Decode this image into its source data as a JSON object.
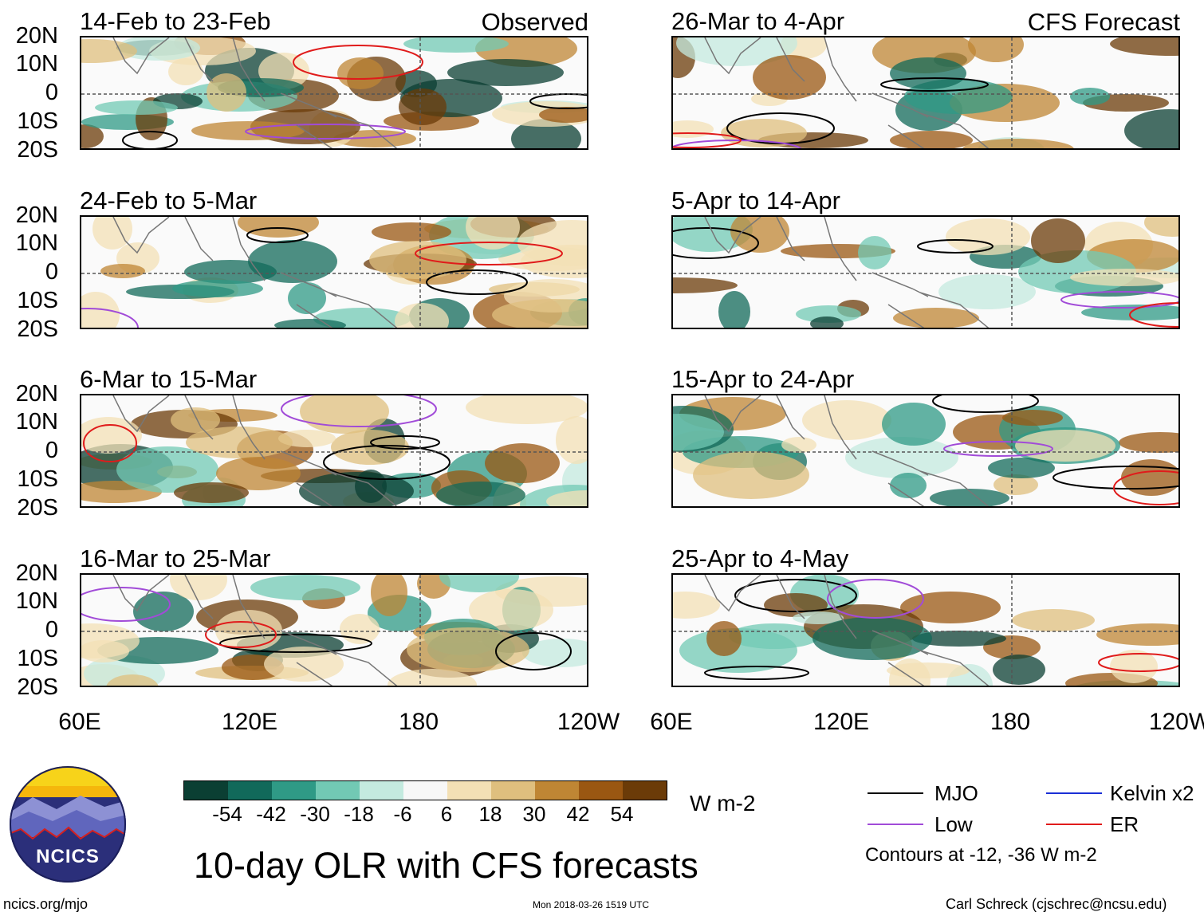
{
  "panels": [
    {
      "id": "p1",
      "title": "14-Feb to 23-Feb",
      "label": "Observed",
      "column": "left",
      "row": 0
    },
    {
      "id": "p2",
      "title": "24-Feb to 5-Mar",
      "label": "",
      "column": "left",
      "row": 1
    },
    {
      "id": "p3",
      "title": "6-Mar to 15-Mar",
      "label": "",
      "column": "left",
      "row": 2
    },
    {
      "id": "p4",
      "title": "16-Mar to 25-Mar",
      "label": "",
      "column": "left",
      "row": 3
    },
    {
      "id": "p5",
      "title": "26-Mar to 4-Apr",
      "label": "CFS Forecast",
      "column": "right",
      "row": 0
    },
    {
      "id": "p6",
      "title": "5-Apr to 14-Apr",
      "label": "",
      "column": "right",
      "row": 1
    },
    {
      "id": "p7",
      "title": "15-Apr to 24-Apr",
      "label": "",
      "column": "right",
      "row": 2
    },
    {
      "id": "p8",
      "title": "25-Apr to 4-May",
      "label": "",
      "column": "right",
      "row": 3
    }
  ],
  "y_ticks": [
    "20N",
    "10N",
    "0",
    "10S",
    "20S"
  ],
  "x_ticks": [
    "60E",
    "120E",
    "180",
    "120W"
  ],
  "chart_data": {
    "type": "heatmap",
    "title": "10-day OLR with CFS forecasts",
    "units": "W m-2",
    "colorbar": {
      "ticks": [
        "-54",
        "-42",
        "-30",
        "-18",
        "-6",
        "6",
        "18",
        "30",
        "42",
        "54"
      ],
      "colors": [
        "#0b3f33",
        "#11695a",
        "#2f9a86",
        "#72c9b4",
        "#c4eadf",
        "#f7f7f7",
        "#f3e0b5",
        "#dfbf7e",
        "#bf8634",
        "#9a5712",
        "#6b3b08"
      ]
    },
    "legend": {
      "items": [
        {
          "label": "MJO",
          "color": "#000000"
        },
        {
          "label": "Kelvin x2",
          "color": "#1a2fd6"
        },
        {
          "label": "Low",
          "color": "#a14bd8"
        },
        {
          "label": "ER",
          "color": "#e01b1b"
        }
      ],
      "note": "Contours at -12, -36 W m-2"
    },
    "lat_range": [
      "20S",
      "20N"
    ],
    "lon_range": [
      "60E",
      "120W"
    ]
  },
  "footer": {
    "site": "ncics.org/mjo",
    "timestamp": "Mon 2018-03-26 1519 UTC",
    "author": "Carl Schreck (cjschrec@ncsu.edu)",
    "logo_text": "NCICS"
  }
}
